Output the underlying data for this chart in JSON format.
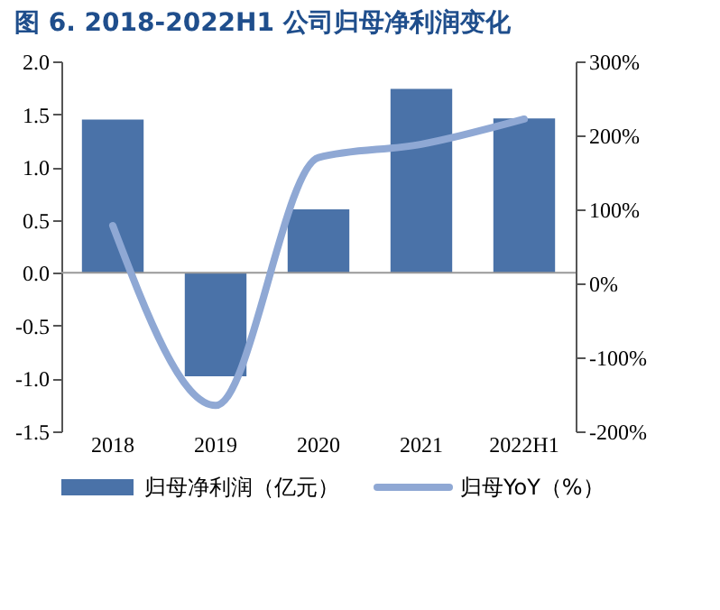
{
  "chart_data": {
    "type": "bar",
    "title": "图 6. 2018-2022H1 公司归母净利润变化",
    "categories": [
      "2018",
      "2019",
      "2020",
      "2021",
      "2022H1"
    ],
    "series": [
      {
        "name": "归母净利润（亿元）",
        "color": "#4a72a8",
        "values": [
          1.45,
          -0.98,
          0.6,
          1.74,
          1.46
        ]
      },
      {
        "name": "归母YoY（%）",
        "type": "line",
        "axis": "y2",
        "color": "#8fa8d4",
        "values": [
          78,
          -165,
          170,
          188,
          222
        ]
      }
    ],
    "ylim": [
      -1.5,
      2.0
    ],
    "yticks": [
      {
        "value": -1.5,
        "label": "-1.5"
      },
      {
        "value": -1.0,
        "label": "-1.0"
      },
      {
        "value": -0.5,
        "label": "-0.5"
      },
      {
        "value": 0,
        "label": "0.0"
      },
      {
        "value": 0.5,
        "label": "0.5"
      },
      {
        "value": 1.0,
        "label": "1.0"
      },
      {
        "value": 1.5,
        "label": "1.5"
      },
      {
        "value": 2.0,
        "label": "2.0"
      }
    ],
    "y2lim": [
      -200,
      300
    ],
    "y2ticks": [
      {
        "value": -200,
        "label": "-200%"
      },
      {
        "value": -100,
        "label": "-100%"
      },
      {
        "value": 0,
        "label": "0%"
      },
      {
        "value": 100,
        "label": "100%"
      },
      {
        "value": 200,
        "label": "200%"
      },
      {
        "value": 300,
        "label": "300%"
      }
    ],
    "ref_lines": [
      {
        "axis": "y",
        "value": 0,
        "color": "#999999"
      }
    ],
    "grid": false,
    "legend": "bottom",
    "marker": "none",
    "line_style": "solid"
  }
}
